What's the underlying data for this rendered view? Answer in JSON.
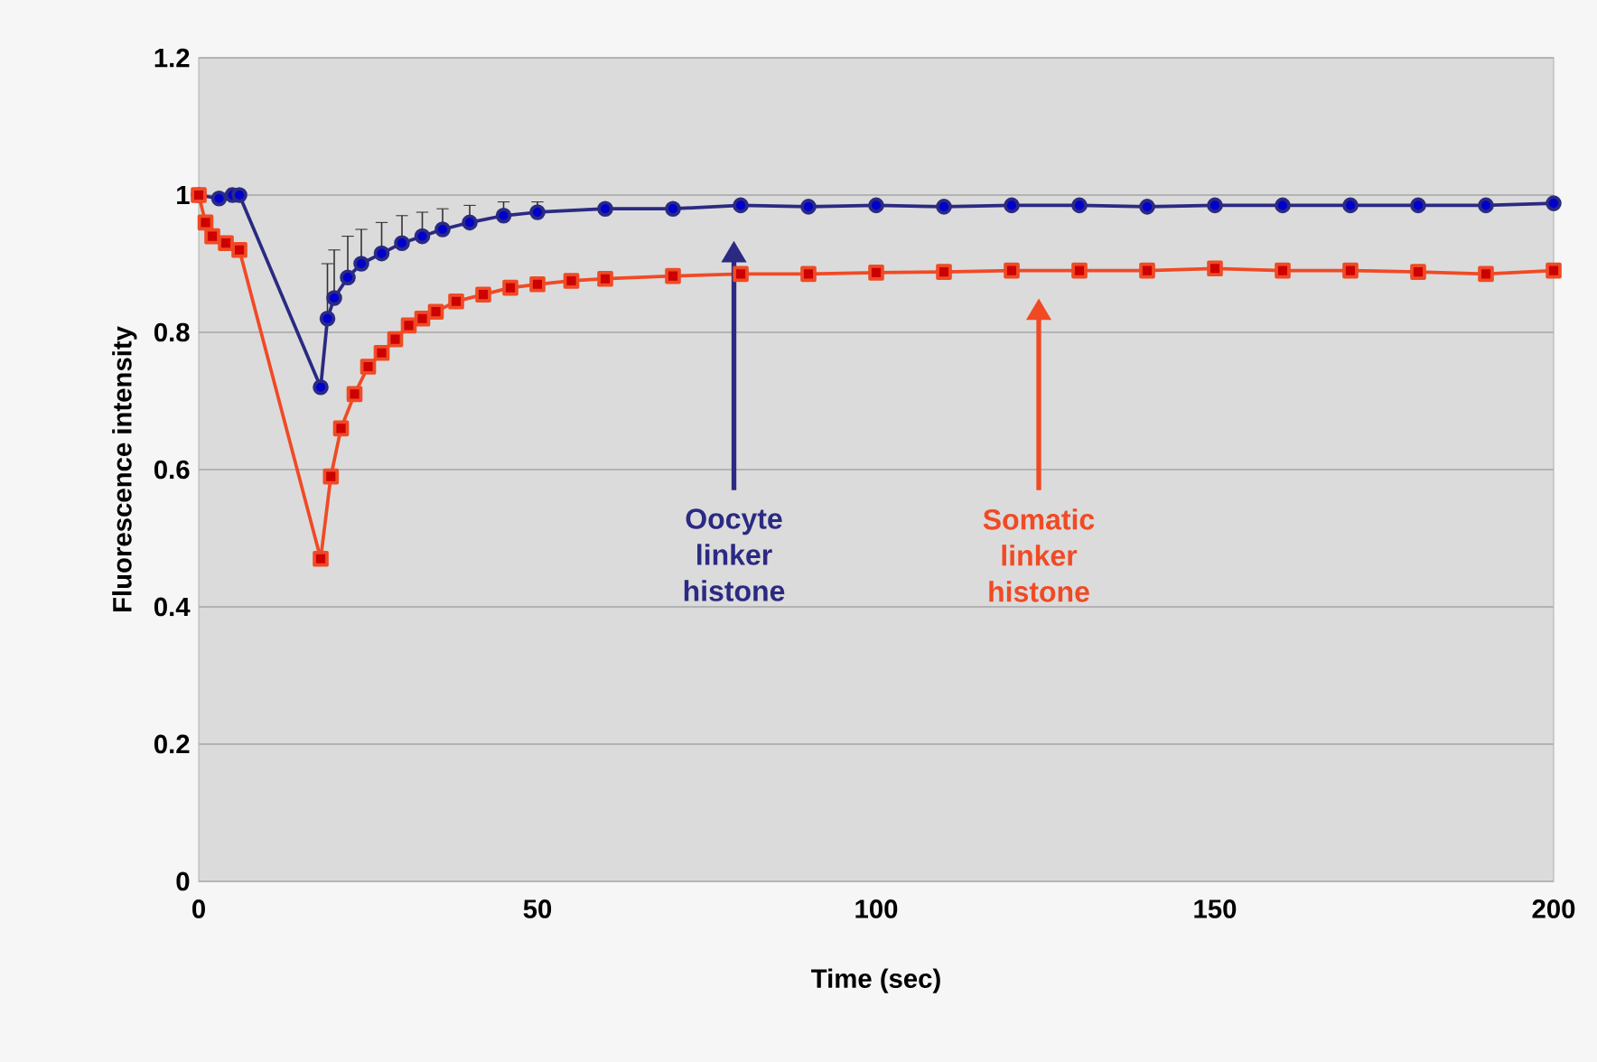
{
  "chart_data": {
    "type": "line",
    "xlabel": "Time (sec)",
    "ylabel": "Fluorescence intensity",
    "xlim": [
      0,
      200
    ],
    "xticks": [
      0,
      50,
      100,
      150,
      200
    ],
    "ylim": [
      0,
      1.2
    ],
    "yticks": [
      0,
      0.2,
      0.4,
      0.6,
      0.8,
      1,
      1.2
    ],
    "grid": "y",
    "series": [
      {
        "color": "#2b2a82",
        "marker": "circle",
        "x": [
          0,
          3,
          5,
          6,
          18,
          19,
          20,
          22,
          24,
          27,
          30,
          33,
          36,
          40,
          45,
          50,
          60,
          70,
          80,
          90,
          100,
          110,
          120,
          130,
          140,
          150,
          160,
          170,
          180,
          190,
          200
        ],
        "values": [
          1.0,
          0.995,
          1.0,
          1.0,
          0.72,
          0.82,
          0.85,
          0.88,
          0.9,
          0.915,
          0.93,
          0.94,
          0.95,
          0.96,
          0.97,
          0.975,
          0.98,
          0.98,
          0.985,
          0.983,
          0.985,
          0.983,
          0.985,
          0.985,
          0.983,
          0.985,
          0.985,
          0.985,
          0.985,
          0.985,
          0.988
        ],
        "errors": [
          null,
          null,
          null,
          null,
          null,
          0.08,
          0.07,
          0.06,
          0.05,
          0.045,
          0.04,
          0.035,
          0.03,
          0.025,
          0.02,
          0.015,
          null,
          null,
          null,
          null,
          null,
          null,
          null,
          null,
          null,
          null,
          null,
          null,
          null,
          null,
          null
        ]
      },
      {
        "color": "#f04a25",
        "marker": "square",
        "x": [
          0,
          1,
          2,
          4,
          6,
          18,
          19.5,
          21,
          23,
          25,
          27,
          29,
          31,
          33,
          35,
          38,
          42,
          46,
          50,
          55,
          60,
          70,
          80,
          90,
          100,
          110,
          120,
          130,
          140,
          150,
          160,
          170,
          180,
          190,
          200
        ],
        "values": [
          1.0,
          0.96,
          0.94,
          0.93,
          0.92,
          0.47,
          0.59,
          0.66,
          0.71,
          0.75,
          0.77,
          0.79,
          0.81,
          0.82,
          0.83,
          0.845,
          0.855,
          0.865,
          0.87,
          0.875,
          0.878,
          0.882,
          0.885,
          0.885,
          0.887,
          0.888,
          0.89,
          0.89,
          0.89,
          0.893,
          0.89,
          0.89,
          0.888,
          0.885,
          0.89
        ]
      }
    ],
    "annotations": [
      "Oocyte linker histone",
      "Somatic linker histone"
    ]
  }
}
